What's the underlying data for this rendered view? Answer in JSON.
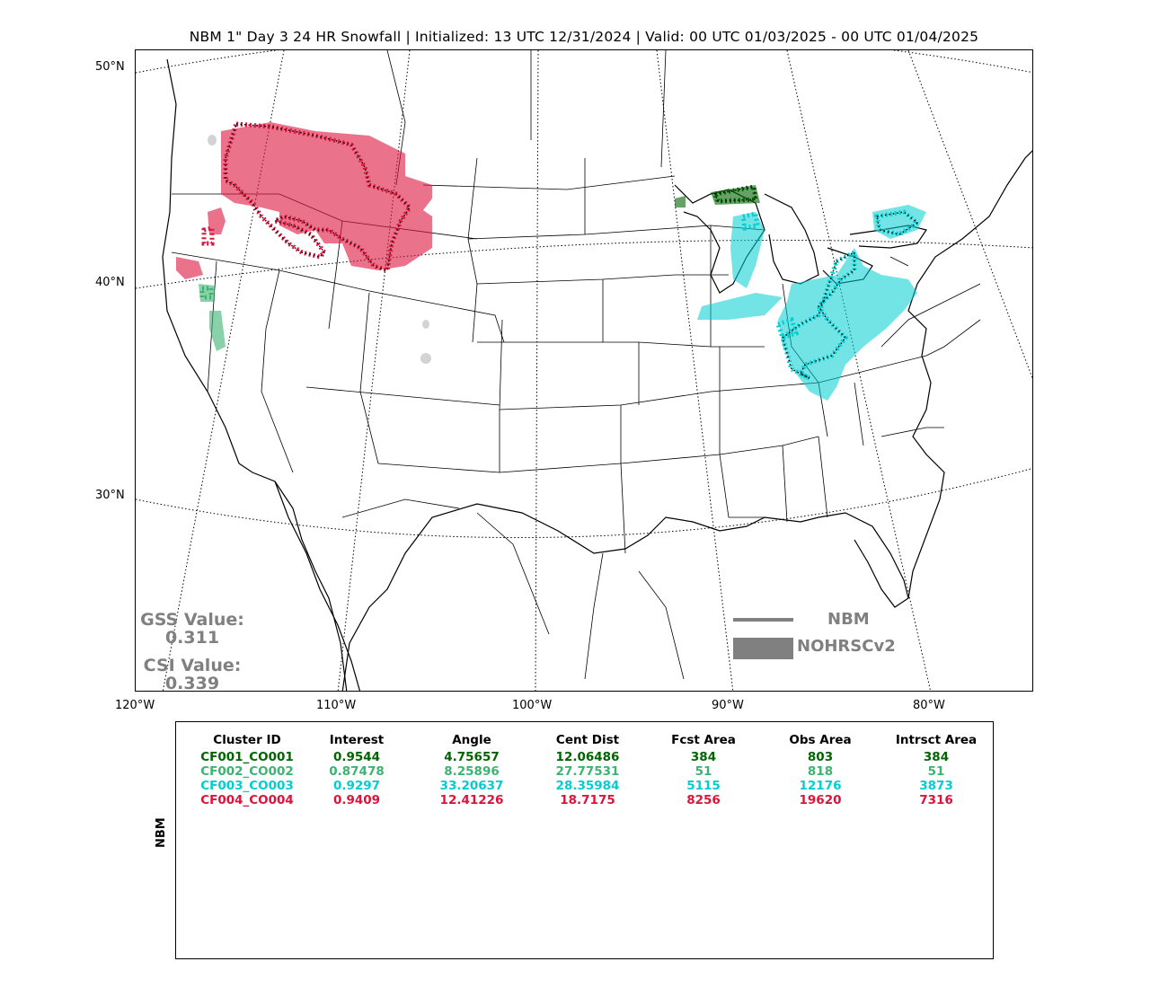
{
  "title": "NBM 1\" Day 3 24 HR Snowfall | Initialized: 13 UTC 12/31/2024 | Valid: 00 UTC 01/03/2025 - 00 UTC 01/04/2025",
  "map": {
    "lat_labels": [
      "50°N",
      "40°N",
      "30°N"
    ],
    "lon_labels": [
      "120°W",
      "110°W",
      "100°W",
      "90°W",
      "80°W"
    ],
    "colors": {
      "cluster1": "#006400",
      "cluster2": "#3cb371",
      "cluster3": "#00ced1",
      "cluster4": "#dc143c",
      "unmatched": "#d3d3d3",
      "legend_gray": "#808080"
    }
  },
  "scores": {
    "gss_label": "GSS Value:",
    "gss_value": "0.311",
    "csi_label": "CSI Value:",
    "csi_value": "0.339"
  },
  "legend": {
    "forecast_label": "NBM",
    "observed_label": "NOHRSCv2"
  },
  "table": {
    "side_label": "NBM",
    "headers": [
      "Cluster ID",
      "Interest",
      "Angle",
      "Cent Dist",
      "Fcst Area",
      "Obs Area",
      "Intrsct Area"
    ],
    "rows": [
      {
        "color": "#006400",
        "cells": [
          "CF001_CO001",
          "0.9544",
          "4.75657",
          "12.06486",
          "384",
          "803",
          "384"
        ]
      },
      {
        "color": "#3cb371",
        "cells": [
          "CF002_CO002",
          "0.87478",
          "8.25896",
          "27.77531",
          "51",
          "818",
          "51"
        ]
      },
      {
        "color": "#00ced1",
        "cells": [
          "CF003_CO003",
          "0.9297",
          "33.20637",
          "28.35984",
          "5115",
          "12176",
          "3873"
        ]
      },
      {
        "color": "#dc143c",
        "cells": [
          "CF004_CO004",
          "0.9409",
          "12.41226",
          "18.7175",
          "8256",
          "19620",
          "7316"
        ]
      }
    ]
  }
}
